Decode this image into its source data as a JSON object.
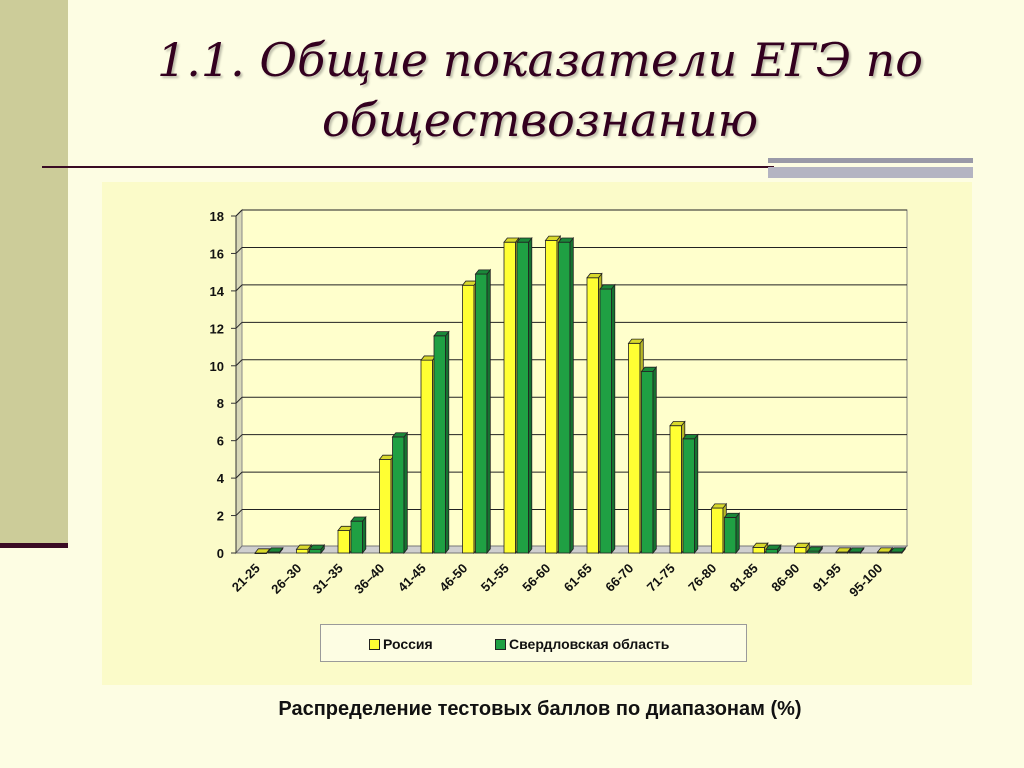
{
  "slide": {
    "title_line1": "1.1. Общие показатели ЕГЭ по",
    "title_line2": "обществознанию",
    "caption": "Распределение тестовых баллов по диапазонам  (%)"
  },
  "chart_data": {
    "type": "bar",
    "categories": [
      "21-25",
      "26–30",
      "31–35",
      "36–40",
      "41-45",
      "46-50",
      "51-55",
      "56-60",
      "61-65",
      "66-70",
      "71-75",
      "76-80",
      "81-85",
      "86-90",
      "91-95",
      "95-100"
    ],
    "series": [
      {
        "name": "Россия",
        "color": "#ffff33",
        "values": [
          0,
          0.2,
          1.2,
          5.0,
          10.3,
          14.3,
          16.6,
          16.7,
          14.7,
          11.2,
          6.8,
          2.4,
          0.3,
          0.3,
          0.05,
          0.05
        ]
      },
      {
        "name": "Свердловская область",
        "color": "#1fa043",
        "values": [
          0.05,
          0.2,
          1.7,
          6.2,
          11.6,
          14.9,
          16.6,
          16.6,
          14.1,
          9.7,
          6.1,
          1.9,
          0.2,
          0.1,
          0.05,
          0.05
        ]
      }
    ],
    "ylim": [
      0,
      18
    ],
    "yticks": [
      0,
      2,
      4,
      6,
      8,
      10,
      12,
      14,
      16,
      18
    ],
    "grid": true,
    "legend_position": "bottom"
  }
}
